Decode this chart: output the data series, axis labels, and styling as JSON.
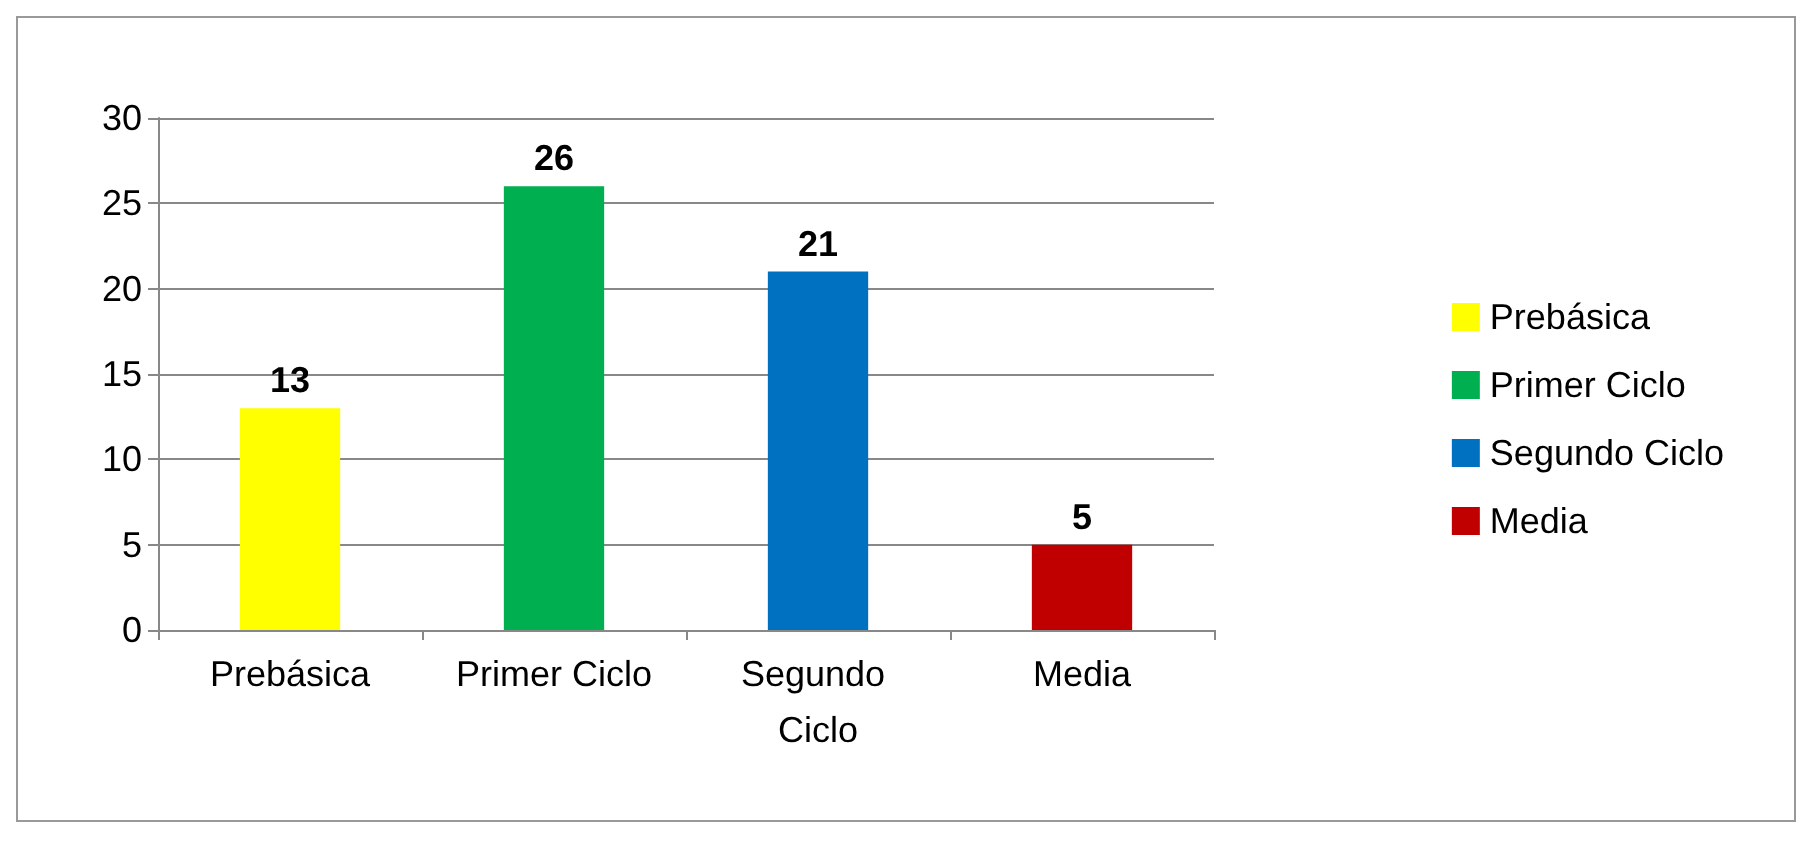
{
  "chart_data": {
    "type": "bar",
    "categories": [
      "Prebásica",
      "Primer Ciclo",
      "Segundo Ciclo",
      "Media"
    ],
    "series": [
      {
        "name": "Prebásica",
        "color": "#ffff00",
        "values": [
          13,
          null,
          null,
          null
        ]
      },
      {
        "name": "Primer Ciclo",
        "color": "#00b050",
        "values": [
          null,
          26,
          null,
          null
        ]
      },
      {
        "name": "Segundo Ciclo",
        "color": "#0070c0",
        "values": [
          null,
          null,
          21,
          null
        ]
      },
      {
        "name": "Media",
        "color": "#c00000",
        "values": [
          null,
          null,
          null,
          5
        ]
      }
    ],
    "ylim": [
      0,
      30
    ],
    "yticks": [
      0,
      5,
      10,
      15,
      20,
      25,
      30
    ],
    "grid": "y",
    "legend": "right",
    "data_labels": true
  }
}
